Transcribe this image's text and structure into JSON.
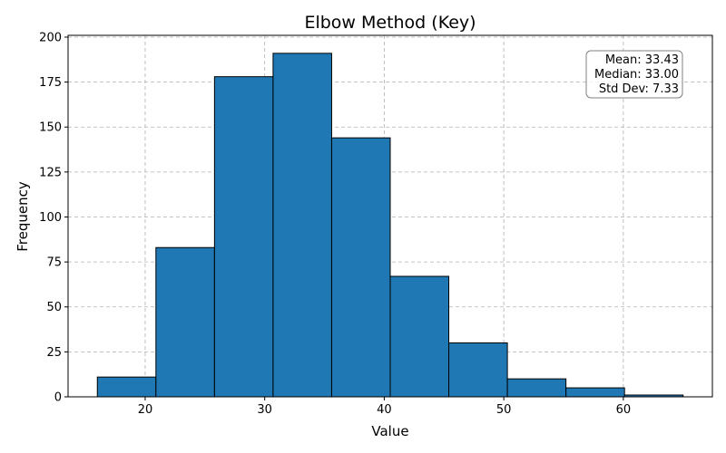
{
  "chart_data": {
    "type": "bar",
    "title": "Elbow Method (Key)",
    "xlabel": "Value",
    "ylabel": "Frequency",
    "bins": [
      {
        "start": 16.0,
        "end": 20.9,
        "count": 11
      },
      {
        "start": 20.9,
        "end": 25.8,
        "count": 83
      },
      {
        "start": 25.8,
        "end": 30.7,
        "count": 178
      },
      {
        "start": 30.7,
        "end": 35.6,
        "count": 191
      },
      {
        "start": 35.6,
        "end": 40.5,
        "count": 144
      },
      {
        "start": 40.5,
        "end": 45.4,
        "count": 67
      },
      {
        "start": 45.4,
        "end": 50.3,
        "count": 30
      },
      {
        "start": 50.3,
        "end": 55.2,
        "count": 10
      },
      {
        "start": 55.2,
        "end": 60.1,
        "count": 5
      },
      {
        "start": 60.1,
        "end": 65.0,
        "count": 1
      }
    ],
    "xlim": [
      13.55,
      67.45
    ],
    "ylim": [
      0,
      201
    ],
    "xticks": [
      20,
      30,
      40,
      50,
      60
    ],
    "yticks": [
      0,
      25,
      50,
      75,
      100,
      125,
      150,
      175,
      200
    ],
    "grid": true,
    "bar_color": "#1f77b4",
    "edge_color": "#000000",
    "stats": {
      "mean": "Mean: 33.43",
      "median": "Median: 33.00",
      "std": "Std Dev: 7.33"
    },
    "stats_placement": "top-right"
  }
}
